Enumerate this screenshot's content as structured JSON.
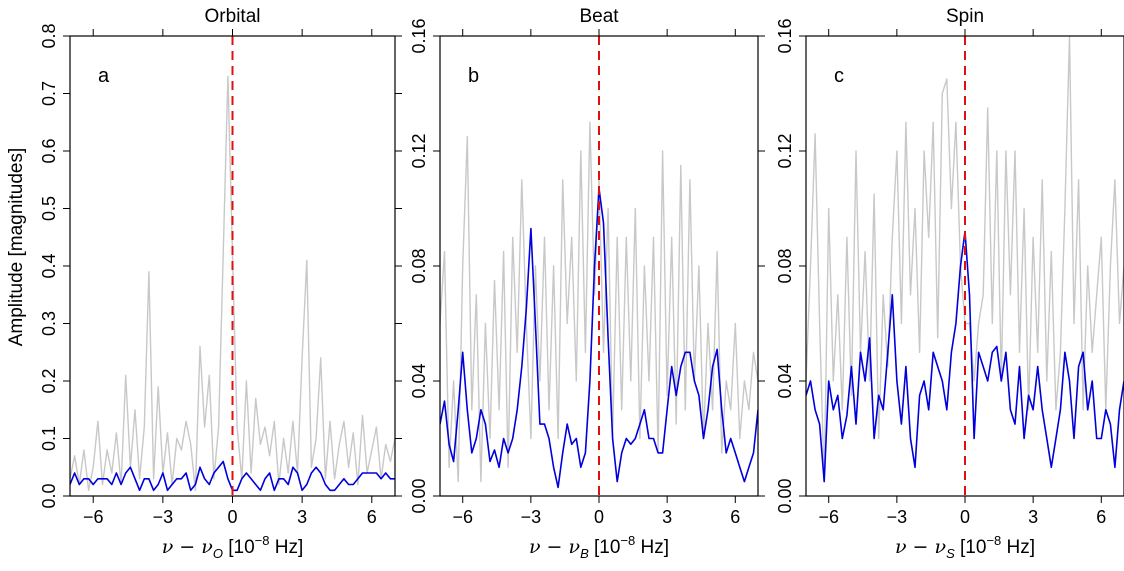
{
  "colors": {
    "primary": "#0000dd",
    "comparison": "#c8c8c8",
    "marker": "#e01010"
  },
  "ylabel": "Amplitude [magnitudes]",
  "chart_data": [
    {
      "type": "line",
      "title": "Orbital",
      "letter": "a",
      "xlabel_parts": [
        "ν − ν",
        "O",
        " [10",
        "−8",
        " Hz]"
      ],
      "xlim": [
        -7,
        7
      ],
      "ylim": [
        0,
        0.8
      ],
      "xticks": [
        -6,
        -3,
        0,
        3,
        6
      ],
      "xtick_labels": [
        "−6",
        "−3",
        "0",
        "3",
        "6"
      ],
      "yticks": [
        0,
        0.1,
        0.2,
        0.3,
        0.4,
        0.5,
        0.6,
        0.7,
        0.8
      ],
      "ytick_labels": [
        "0.0",
        "0.1",
        "0.2",
        "0.3",
        "0.4",
        "0.5",
        "0.6",
        "0.7",
        "0.8"
      ],
      "marker_x": 0,
      "series": [
        {
          "role": "comparison",
          "x": [
            -7,
            -6.8,
            -6.6,
            -6.4,
            -6.2,
            -6.0,
            -5.8,
            -5.6,
            -5.4,
            -5.2,
            -5.0,
            -4.8,
            -4.6,
            -4.4,
            -4.2,
            -4.0,
            -3.8,
            -3.6,
            -3.4,
            -3.2,
            -3.0,
            -2.8,
            -2.6,
            -2.4,
            -2.2,
            -2.0,
            -1.8,
            -1.6,
            -1.4,
            -1.2,
            -1.0,
            -0.8,
            -0.6,
            -0.4,
            -0.2,
            0,
            0.2,
            0.4,
            0.6,
            0.8,
            1.0,
            1.2,
            1.4,
            1.6,
            1.8,
            2.0,
            2.2,
            2.4,
            2.6,
            2.8,
            3.0,
            3.2,
            3.4,
            3.6,
            3.8,
            4.0,
            4.2,
            4.4,
            4.6,
            4.8,
            5.0,
            5.2,
            5.4,
            5.6,
            5.8,
            6.0,
            6.2,
            6.4,
            6.6,
            6.8,
            7.0
          ],
          "y": [
            0.03,
            0.07,
            0.02,
            0.08,
            0.01,
            0.05,
            0.13,
            0.02,
            0.08,
            0.04,
            0.11,
            0.02,
            0.21,
            0.05,
            0.15,
            0.03,
            0.12,
            0.39,
            0.03,
            0.19,
            0.04,
            0.11,
            0.02,
            0.1,
            0.08,
            0.13,
            0.09,
            0.01,
            0.26,
            0.12,
            0.21,
            0.03,
            0.12,
            0.42,
            0.73,
            0.42,
            0.12,
            0.03,
            0.2,
            0.04,
            0.17,
            0.09,
            0.12,
            0.07,
            0.13,
            0.02,
            0.1,
            0.04,
            0.13,
            0.04,
            0.24,
            0.41,
            0.05,
            0.1,
            0.24,
            0.03,
            0.13,
            0.03,
            0.09,
            0.13,
            0.05,
            0.11,
            0.02,
            0.14,
            0.04,
            0.08,
            0.12,
            0.03,
            0.09,
            0.06,
            0.1
          ]
        },
        {
          "role": "primary",
          "x": [
            -7,
            -6.8,
            -6.6,
            -6.4,
            -6.2,
            -6.0,
            -5.8,
            -5.6,
            -5.4,
            -5.2,
            -5.0,
            -4.8,
            -4.6,
            -4.4,
            -4.2,
            -4.0,
            -3.8,
            -3.6,
            -3.4,
            -3.2,
            -3.0,
            -2.8,
            -2.6,
            -2.4,
            -2.2,
            -2.0,
            -1.8,
            -1.6,
            -1.4,
            -1.2,
            -1.0,
            -0.8,
            -0.6,
            -0.4,
            -0.2,
            0,
            0.2,
            0.4,
            0.6,
            0.8,
            1.0,
            1.2,
            1.4,
            1.6,
            1.8,
            2.0,
            2.2,
            2.4,
            2.6,
            2.8,
            3.0,
            3.2,
            3.4,
            3.6,
            3.8,
            4.0,
            4.2,
            4.4,
            4.6,
            4.8,
            5.0,
            5.2,
            5.4,
            5.6,
            5.8,
            6.0,
            6.2,
            6.4,
            6.6,
            6.8,
            7.0
          ],
          "y": [
            0.02,
            0.04,
            0.02,
            0.03,
            0.03,
            0.02,
            0.03,
            0.03,
            0.03,
            0.02,
            0.04,
            0.02,
            0.04,
            0.05,
            0.03,
            0.01,
            0.03,
            0.03,
            0.01,
            0.02,
            0.04,
            0.01,
            0.02,
            0.03,
            0.03,
            0.04,
            0.01,
            0.02,
            0.05,
            0.03,
            0.02,
            0.04,
            0.05,
            0.06,
            0.03,
            0.01,
            0.01,
            0.03,
            0.04,
            0.03,
            0.02,
            0.01,
            0.03,
            0.04,
            0.01,
            0.03,
            0.03,
            0.02,
            0.05,
            0.04,
            0.01,
            0.02,
            0.04,
            0.05,
            0.04,
            0.02,
            0.01,
            0.01,
            0.02,
            0.03,
            0.02,
            0.02,
            0.03,
            0.04,
            0.04,
            0.04,
            0.04,
            0.03,
            0.04,
            0.03,
            0.03
          ]
        }
      ]
    },
    {
      "type": "line",
      "title": "Beat",
      "letter": "b",
      "xlabel_parts": [
        "ν − ν",
        "B",
        " [10",
        "−8",
        " Hz]"
      ],
      "xlim": [
        -7,
        7
      ],
      "ylim": [
        0,
        0.16
      ],
      "xticks": [
        -6,
        -3,
        0,
        3,
        6
      ],
      "xtick_labels": [
        "−6",
        "−3",
        "0",
        "3",
        "6"
      ],
      "yticks": [
        0,
        0.04,
        0.08,
        0.12,
        0.16
      ],
      "ytick_labels": [
        "0.00",
        "0.04",
        "0.08",
        "0.12",
        "0.16"
      ],
      "marker_x": 0,
      "series": [
        {
          "role": "comparison",
          "x": [
            -7,
            -6.8,
            -6.6,
            -6.4,
            -6.2,
            -6.0,
            -5.8,
            -5.6,
            -5.4,
            -5.2,
            -5.0,
            -4.8,
            -4.6,
            -4.4,
            -4.2,
            -4.0,
            -3.8,
            -3.6,
            -3.4,
            -3.2,
            -3.0,
            -2.8,
            -2.6,
            -2.4,
            -2.2,
            -2.0,
            -1.8,
            -1.6,
            -1.4,
            -1.2,
            -1.0,
            -0.8,
            -0.6,
            -0.4,
            -0.2,
            0,
            0.2,
            0.4,
            0.6,
            0.8,
            1.0,
            1.2,
            1.4,
            1.6,
            1.8,
            2.0,
            2.2,
            2.4,
            2.6,
            2.8,
            3.0,
            3.2,
            3.4,
            3.6,
            3.8,
            4.0,
            4.2,
            4.4,
            4.6,
            4.8,
            5.0,
            5.2,
            5.4,
            5.6,
            5.8,
            6.0,
            6.2,
            6.4,
            6.6,
            6.8,
            7.0
          ],
          "y": [
            0.06,
            0.085,
            0.01,
            0.04,
            0.005,
            0.08,
            0.125,
            0.03,
            0.07,
            0.005,
            0.06,
            0.02,
            0.075,
            0.03,
            0.085,
            0.01,
            0.09,
            0.05,
            0.11,
            0.06,
            0.02,
            0.08,
            0.04,
            0.09,
            0.03,
            0.08,
            0.02,
            0.11,
            0.06,
            0.09,
            0.04,
            0.12,
            0.05,
            0.13,
            0.07,
            0.11,
            0.05,
            0.1,
            0.02,
            0.09,
            0.03,
            0.09,
            0.04,
            0.1,
            0.02,
            0.08,
            0.04,
            0.09,
            0.015,
            0.12,
            0.035,
            0.09,
            0.025,
            0.115,
            0.03,
            0.11,
            0.04,
            0.08,
            0.02,
            0.06,
            0.03,
            0.085,
            0.015,
            0.04,
            0.03,
            0.06,
            0.02,
            0.04,
            0.03,
            0.05,
            0.04
          ]
        },
        {
          "role": "primary",
          "x": [
            -7,
            -6.8,
            -6.6,
            -6.4,
            -6.2,
            -6.0,
            -5.8,
            -5.6,
            -5.4,
            -5.2,
            -5.0,
            -4.8,
            -4.6,
            -4.4,
            -4.2,
            -4.0,
            -3.8,
            -3.6,
            -3.4,
            -3.2,
            -3.0,
            -2.8,
            -2.6,
            -2.4,
            -2.2,
            -2.0,
            -1.8,
            -1.6,
            -1.4,
            -1.2,
            -1.0,
            -0.8,
            -0.6,
            -0.4,
            -0.2,
            0,
            0.2,
            0.4,
            0.6,
            0.8,
            1.0,
            1.2,
            1.4,
            1.6,
            1.8,
            2.0,
            2.2,
            2.4,
            2.6,
            2.8,
            3.0,
            3.2,
            3.4,
            3.6,
            3.8,
            4.0,
            4.2,
            4.4,
            4.6,
            4.8,
            5.0,
            5.2,
            5.4,
            5.6,
            5.8,
            6.0,
            6.2,
            6.4,
            6.6,
            6.8,
            7.0
          ],
          "y": [
            0.025,
            0.033,
            0.018,
            0.012,
            0.03,
            0.05,
            0.03,
            0.015,
            0.02,
            0.03,
            0.025,
            0.012,
            0.016,
            0.01,
            0.02,
            0.015,
            0.02,
            0.03,
            0.045,
            0.065,
            0.093,
            0.06,
            0.025,
            0.025,
            0.02,
            0.01,
            0.003,
            0.015,
            0.025,
            0.018,
            0.02,
            0.01,
            0.015,
            0.04,
            0.08,
            0.107,
            0.095,
            0.055,
            0.02,
            0.005,
            0.015,
            0.02,
            0.018,
            0.02,
            0.025,
            0.03,
            0.02,
            0.02,
            0.015,
            0.015,
            0.03,
            0.045,
            0.035,
            0.045,
            0.05,
            0.05,
            0.04,
            0.035,
            0.02,
            0.03,
            0.045,
            0.051,
            0.03,
            0.015,
            0.02,
            0.015,
            0.01,
            0.005,
            0.01,
            0.015,
            0.03
          ]
        }
      ]
    },
    {
      "type": "line",
      "title": "Spin",
      "letter": "c",
      "xlabel_parts": [
        "ν − ν",
        "S",
        " [10",
        "−8",
        " Hz]"
      ],
      "xlim": [
        -7,
        7
      ],
      "ylim": [
        0,
        0.16
      ],
      "xticks": [
        -6,
        -3,
        0,
        3,
        6
      ],
      "xtick_labels": [
        "−6",
        "−3",
        "0",
        "3",
        "6"
      ],
      "yticks": [
        0,
        0.04,
        0.08,
        0.12,
        0.16
      ],
      "ytick_labels": [
        "0.00",
        "0.04",
        "0.08",
        "0.12",
        "0.16"
      ],
      "marker_x": 0,
      "series": [
        {
          "role": "comparison",
          "x": [
            -7,
            -6.8,
            -6.6,
            -6.4,
            -6.2,
            -6.0,
            -5.8,
            -5.6,
            -5.4,
            -5.2,
            -5.0,
            -4.8,
            -4.6,
            -4.4,
            -4.2,
            -4.0,
            -3.8,
            -3.6,
            -3.4,
            -3.2,
            -3.0,
            -2.8,
            -2.6,
            -2.4,
            -2.2,
            -2.0,
            -1.8,
            -1.6,
            -1.4,
            -1.2,
            -1.0,
            -0.8,
            -0.6,
            -0.4,
            -0.2,
            0,
            0.2,
            0.4,
            0.6,
            0.8,
            1.0,
            1.2,
            1.4,
            1.6,
            1.8,
            2.0,
            2.2,
            2.4,
            2.6,
            2.8,
            3.0,
            3.2,
            3.4,
            3.6,
            3.8,
            4.0,
            4.2,
            4.4,
            4.6,
            4.8,
            5.0,
            5.2,
            5.4,
            5.6,
            5.8,
            6.0,
            6.2,
            6.4,
            6.6,
            6.8,
            7.0
          ],
          "y": [
            0.04,
            0.08,
            0.126,
            0.06,
            0.005,
            0.1,
            0.04,
            0.07,
            0.03,
            0.09,
            0.035,
            0.12,
            0.05,
            0.085,
            0.04,
            0.105,
            0.02,
            0.07,
            0.045,
            0.09,
            0.12,
            0.06,
            0.13,
            0.07,
            0.1,
            0.05,
            0.12,
            0.09,
            0.13,
            0.055,
            0.14,
            0.145,
            0.1,
            0.13,
            0.08,
            0.06,
            0.06,
            0.04,
            0.06,
            0.07,
            0.135,
            0.06,
            0.12,
            0.04,
            0.12,
            0.07,
            0.12,
            0.05,
            0.1,
            0.03,
            0.09,
            0.05,
            0.11,
            0.04,
            0.085,
            0.03,
            0.05,
            0.1,
            0.16,
            0.06,
            0.11,
            0.03,
            0.08,
            0.05,
            0.07,
            0.09,
            0.03,
            0.08,
            0.11,
            0.06,
            0.08
          ]
        },
        {
          "role": "primary",
          "x": [
            -7,
            -6.8,
            -6.6,
            -6.4,
            -6.2,
            -6.0,
            -5.8,
            -5.6,
            -5.4,
            -5.2,
            -5.0,
            -4.8,
            -4.6,
            -4.4,
            -4.2,
            -4.0,
            -3.8,
            -3.6,
            -3.4,
            -3.2,
            -3.0,
            -2.8,
            -2.6,
            -2.4,
            -2.2,
            -2.0,
            -1.8,
            -1.6,
            -1.4,
            -1.2,
            -1.0,
            -0.8,
            -0.6,
            -0.4,
            -0.2,
            0,
            0.2,
            0.4,
            0.6,
            0.8,
            1.0,
            1.2,
            1.4,
            1.6,
            1.8,
            2.0,
            2.2,
            2.4,
            2.6,
            2.8,
            3.0,
            3.2,
            3.4,
            3.6,
            3.8,
            4.0,
            4.2,
            4.4,
            4.6,
            4.8,
            5.0,
            5.2,
            5.4,
            5.6,
            5.8,
            6.0,
            6.2,
            6.4,
            6.6,
            6.8,
            7.0
          ],
          "y": [
            0.035,
            0.04,
            0.03,
            0.025,
            0.005,
            0.04,
            0.03,
            0.035,
            0.02,
            0.028,
            0.045,
            0.025,
            0.05,
            0.04,
            0.055,
            0.02,
            0.035,
            0.03,
            0.05,
            0.07,
            0.04,
            0.025,
            0.045,
            0.02,
            0.01,
            0.035,
            0.04,
            0.03,
            0.05,
            0.045,
            0.04,
            0.03,
            0.05,
            0.06,
            0.08,
            0.092,
            0.07,
            0.02,
            0.05,
            0.045,
            0.04,
            0.05,
            0.052,
            0.04,
            0.05,
            0.03,
            0.025,
            0.045,
            0.02,
            0.035,
            0.03,
            0.045,
            0.03,
            0.02,
            0.01,
            0.02,
            0.03,
            0.05,
            0.04,
            0.02,
            0.045,
            0.05,
            0.03,
            0.04,
            0.02,
            0.02,
            0.03,
            0.025,
            0.01,
            0.03,
            0.04
          ]
        }
      ]
    }
  ]
}
